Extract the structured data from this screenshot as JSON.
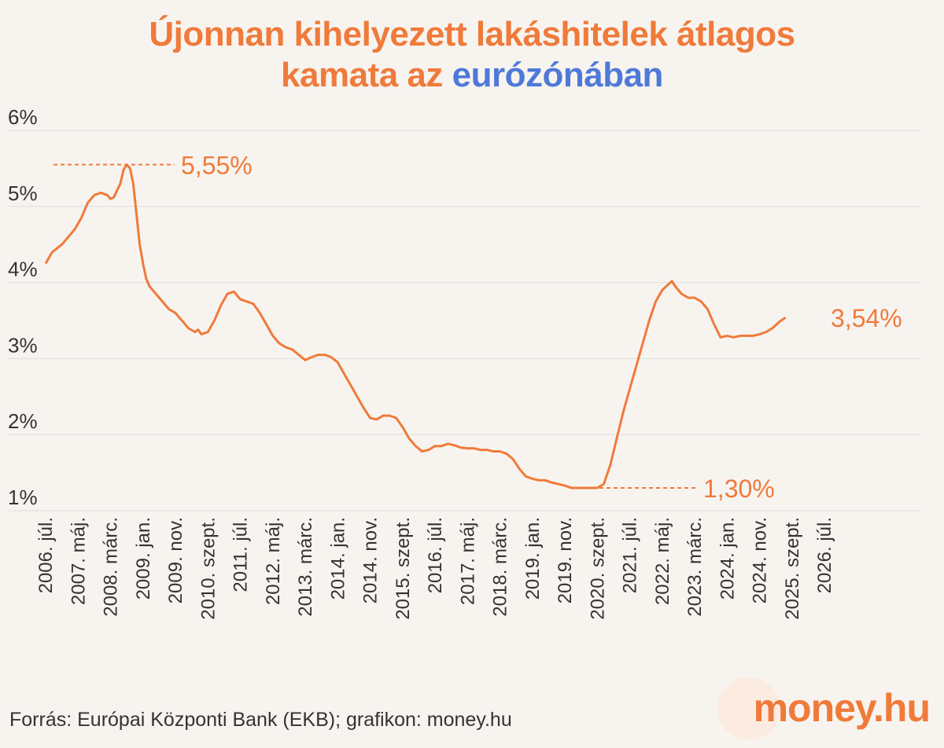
{
  "title": {
    "part1": "Újonnan kihelyezett lakáshitelek átlagos",
    "part2": "kamata az",
    "highlight": "eurózónában"
  },
  "source": "Forrás: Európai Központi Bank (EKB); grafikon: money.hu",
  "logo": {
    "text": "money",
    "suffix": ".hu"
  },
  "colors": {
    "line": "#f07a3a",
    "highlight": "#4f79d8",
    "grid": "#dddddd"
  },
  "chart_data": {
    "type": "line",
    "title": "Újonnan kihelyezett lakáshitelek átlagos kamata az eurózónában",
    "ylim": [
      1,
      6
    ],
    "yticks": [
      "1%",
      "2%",
      "3%",
      "4%",
      "5%",
      "6%"
    ],
    "ytick_values": [
      1,
      2,
      3,
      4,
      5,
      6
    ],
    "x_tick_labels": [
      "2006. júl.",
      "2007. máj.",
      "2008. márc.",
      "2009. jan.",
      "2009. nov.",
      "2010. szept.",
      "2011. júl.",
      "2012. máj.",
      "2013. márc.",
      "2014. jan.",
      "2014. nov.",
      "2015. szept.",
      "2016. júl.",
      "2017. máj.",
      "2018. márc.",
      "2019. jan.",
      "2019. nov.",
      "2020. szept.",
      "2021. júl.",
      "2022. máj.",
      "2023. márc.",
      "2024. jan.",
      "2024. nov.",
      "2025. szept.",
      "2026. júl."
    ],
    "x_tick_months": [
      0,
      10,
      20,
      30,
      40,
      50,
      60,
      70,
      80,
      90,
      100,
      110,
      120,
      130,
      140,
      150,
      160,
      170,
      180,
      190,
      200,
      210,
      220,
      230,
      240
    ],
    "grid": true,
    "series": [
      {
        "points": [
          [
            0,
            4.25
          ],
          [
            2,
            4.4
          ],
          [
            5,
            4.5
          ],
          [
            7,
            4.6
          ],
          [
            9,
            4.7
          ],
          [
            11,
            4.85
          ],
          [
            13,
            5.05
          ],
          [
            15,
            5.15
          ],
          [
            17,
            5.18
          ],
          [
            19,
            5.15
          ],
          [
            20,
            5.1
          ],
          [
            21,
            5.12
          ],
          [
            23,
            5.3
          ],
          [
            24,
            5.48
          ],
          [
            25,
            5.55
          ],
          [
            26,
            5.5
          ],
          [
            27,
            5.3
          ],
          [
            28,
            4.9
          ],
          [
            29,
            4.5
          ],
          [
            30,
            4.25
          ],
          [
            31,
            4.05
          ],
          [
            32,
            3.95
          ],
          [
            34,
            3.85
          ],
          [
            36,
            3.75
          ],
          [
            38,
            3.65
          ],
          [
            40,
            3.6
          ],
          [
            42,
            3.5
          ],
          [
            44,
            3.4
          ],
          [
            46,
            3.35
          ],
          [
            47,
            3.38
          ],
          [
            48,
            3.32
          ],
          [
            50,
            3.35
          ],
          [
            52,
            3.5
          ],
          [
            54,
            3.7
          ],
          [
            56,
            3.85
          ],
          [
            58,
            3.88
          ],
          [
            60,
            3.78
          ],
          [
            62,
            3.75
          ],
          [
            64,
            3.72
          ],
          [
            66,
            3.6
          ],
          [
            68,
            3.45
          ],
          [
            70,
            3.3
          ],
          [
            72,
            3.2
          ],
          [
            74,
            3.15
          ],
          [
            76,
            3.12
          ],
          [
            78,
            3.05
          ],
          [
            80,
            2.98
          ],
          [
            82,
            3.02
          ],
          [
            84,
            3.05
          ],
          [
            86,
            3.05
          ],
          [
            88,
            3.02
          ],
          [
            90,
            2.95
          ],
          [
            92,
            2.8
          ],
          [
            94,
            2.65
          ],
          [
            96,
            2.5
          ],
          [
            98,
            2.35
          ],
          [
            100,
            2.22
          ],
          [
            102,
            2.2
          ],
          [
            104,
            2.25
          ],
          [
            106,
            2.25
          ],
          [
            108,
            2.22
          ],
          [
            110,
            2.1
          ],
          [
            112,
            1.95
          ],
          [
            114,
            1.85
          ],
          [
            116,
            1.78
          ],
          [
            118,
            1.8
          ],
          [
            120,
            1.85
          ],
          [
            122,
            1.85
          ],
          [
            124,
            1.88
          ],
          [
            126,
            1.86
          ],
          [
            128,
            1.83
          ],
          [
            130,
            1.82
          ],
          [
            132,
            1.82
          ],
          [
            134,
            1.8
          ],
          [
            136,
            1.8
          ],
          [
            138,
            1.78
          ],
          [
            140,
            1.78
          ],
          [
            142,
            1.75
          ],
          [
            144,
            1.68
          ],
          [
            146,
            1.55
          ],
          [
            148,
            1.45
          ],
          [
            150,
            1.42
          ],
          [
            152,
            1.4
          ],
          [
            154,
            1.4
          ],
          [
            156,
            1.37
          ],
          [
            158,
            1.35
          ],
          [
            160,
            1.33
          ],
          [
            162,
            1.3
          ],
          [
            164,
            1.3
          ],
          [
            166,
            1.3
          ],
          [
            168,
            1.3
          ],
          [
            170,
            1.3
          ],
          [
            172,
            1.35
          ],
          [
            174,
            1.6
          ],
          [
            176,
            1.95
          ],
          [
            178,
            2.3
          ],
          [
            180,
            2.6
          ],
          [
            182,
            2.9
          ],
          [
            184,
            3.2
          ],
          [
            186,
            3.5
          ],
          [
            188,
            3.75
          ],
          [
            190,
            3.9
          ],
          [
            192,
            3.98
          ],
          [
            193,
            4.02
          ],
          [
            194,
            3.95
          ],
          [
            196,
            3.85
          ],
          [
            198,
            3.8
          ],
          [
            200,
            3.8
          ],
          [
            202,
            3.75
          ],
          [
            204,
            3.65
          ],
          [
            206,
            3.45
          ],
          [
            208,
            3.28
          ],
          [
            210,
            3.3
          ],
          [
            212,
            3.28
          ],
          [
            214,
            3.3
          ],
          [
            216,
            3.3
          ],
          [
            218,
            3.3
          ],
          [
            220,
            3.32
          ],
          [
            222,
            3.35
          ],
          [
            224,
            3.4
          ],
          [
            226,
            3.48
          ],
          [
            228,
            3.54
          ]
        ]
      }
    ],
    "annotations": [
      {
        "label": "5,55%",
        "value": 5.55
      },
      {
        "label": "1,30%",
        "value": 1.3
      },
      {
        "label": "3,54%",
        "value": 3.54
      }
    ]
  }
}
